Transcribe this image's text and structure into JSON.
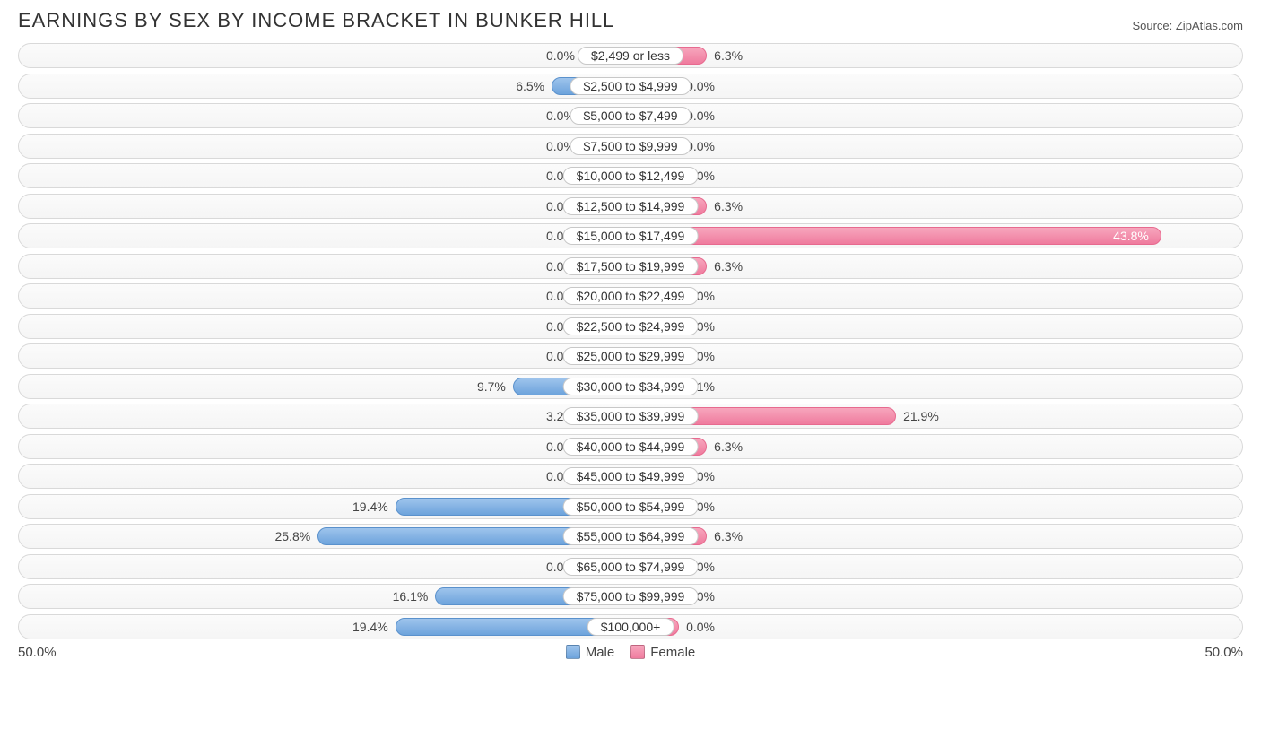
{
  "title": "EARNINGS BY SEX BY INCOME BRACKET IN BUNKER HILL",
  "source": "Source: ZipAtlas.com",
  "axis_max": 50.0,
  "axis_left_label": "50.0%",
  "axis_right_label": "50.0%",
  "legend": {
    "male": "Male",
    "female": "Female"
  },
  "colors": {
    "male_fill_top": "#9ec4ec",
    "male_fill_bottom": "#6da3dc",
    "male_border": "#5a91cc",
    "female_fill_top": "#f7a6bd",
    "female_fill_bottom": "#ef7b9e",
    "female_border": "#e76a8f",
    "track_border": "#d9d9d9",
    "track_bg_top": "#fbfbfb",
    "track_bg_bottom": "#f5f5f5",
    "label_bg": "#ffffff",
    "label_border": "#c8c8c8",
    "text": "#333333"
  },
  "min_bar_pct": 4.0,
  "rows": [
    {
      "category": "$2,499 or less",
      "male": 0.0,
      "female": 6.3
    },
    {
      "category": "$2,500 to $4,999",
      "male": 6.5,
      "female": 0.0
    },
    {
      "category": "$5,000 to $7,499",
      "male": 0.0,
      "female": 0.0
    },
    {
      "category": "$7,500 to $9,999",
      "male": 0.0,
      "female": 0.0
    },
    {
      "category": "$10,000 to $12,499",
      "male": 0.0,
      "female": 0.0
    },
    {
      "category": "$12,500 to $14,999",
      "male": 0.0,
      "female": 6.3
    },
    {
      "category": "$15,000 to $17,499",
      "male": 0.0,
      "female": 43.8
    },
    {
      "category": "$17,500 to $19,999",
      "male": 0.0,
      "female": 6.3
    },
    {
      "category": "$20,000 to $22,499",
      "male": 0.0,
      "female": 0.0
    },
    {
      "category": "$22,500 to $24,999",
      "male": 0.0,
      "female": 0.0
    },
    {
      "category": "$25,000 to $29,999",
      "male": 0.0,
      "female": 0.0
    },
    {
      "category": "$30,000 to $34,999",
      "male": 9.7,
      "female": 3.1
    },
    {
      "category": "$35,000 to $39,999",
      "male": 3.2,
      "female": 21.9
    },
    {
      "category": "$40,000 to $44,999",
      "male": 0.0,
      "female": 6.3
    },
    {
      "category": "$45,000 to $49,999",
      "male": 0.0,
      "female": 0.0
    },
    {
      "category": "$50,000 to $54,999",
      "male": 19.4,
      "female": 0.0
    },
    {
      "category": "$55,000 to $64,999",
      "male": 25.8,
      "female": 6.3
    },
    {
      "category": "$65,000 to $74,999",
      "male": 0.0,
      "female": 0.0
    },
    {
      "category": "$75,000 to $99,999",
      "male": 16.1,
      "female": 0.0
    },
    {
      "category": "$100,000+",
      "male": 19.4,
      "female": 0.0
    }
  ]
}
